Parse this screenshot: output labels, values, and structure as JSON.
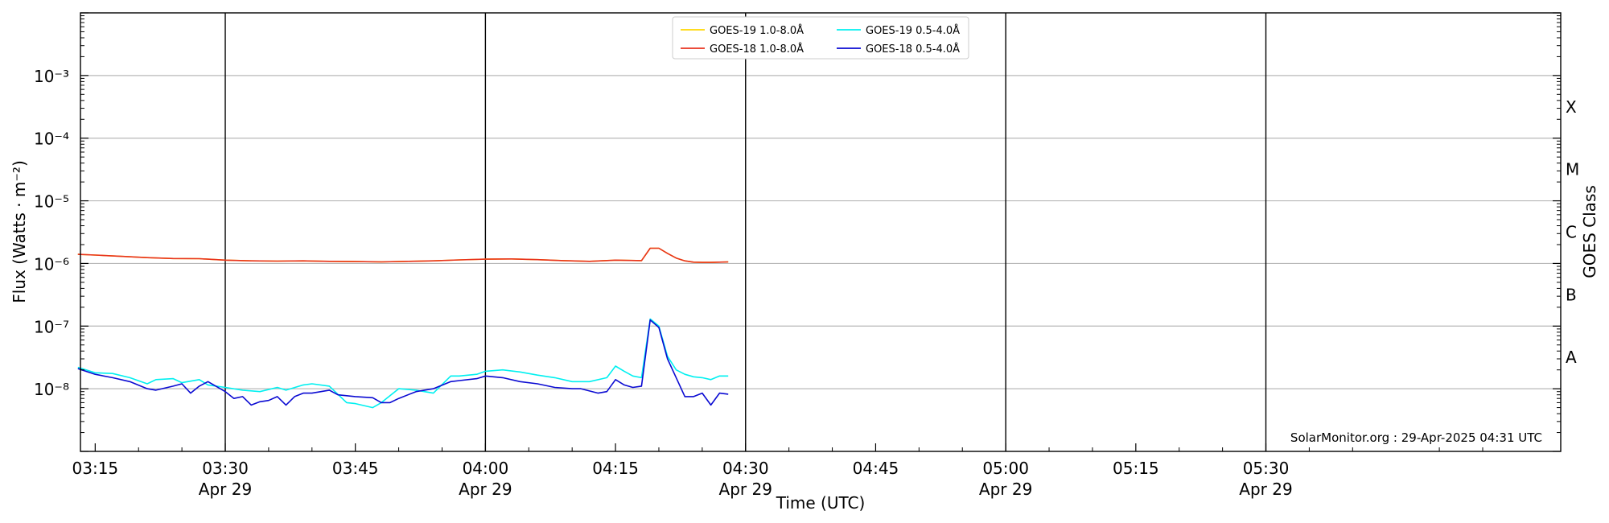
{
  "chart_data": {
    "type": "line",
    "title": "",
    "xlabel": "Time (UTC)",
    "ylabel": "Flux (Watts · m⁻²)",
    "y2label": "GOES Class",
    "yscale": "log",
    "ylim_exp": [
      -9,
      -2
    ],
    "xlim_minutes_of_day": [
      193.3,
      364.0
    ],
    "yticks": [
      {
        "exp": -3,
        "label": "10⁻³"
      },
      {
        "exp": -4,
        "label": "10⁻⁴"
      },
      {
        "exp": -5,
        "label": "10⁻⁵"
      },
      {
        "exp": -6,
        "label": "10⁻⁶"
      },
      {
        "exp": -7,
        "label": "10⁻⁷"
      },
      {
        "exp": -8,
        "label": "10⁻⁸"
      }
    ],
    "xticks": [
      {
        "t": "03:15",
        "label": "03:15",
        "date": ""
      },
      {
        "t": "03:30",
        "label": "03:30",
        "date": "Apr 29"
      },
      {
        "t": "03:45",
        "label": "03:45",
        "date": ""
      },
      {
        "t": "04:00",
        "label": "04:00",
        "date": "Apr 29"
      },
      {
        "t": "04:15",
        "label": "04:15",
        "date": ""
      },
      {
        "t": "04:30",
        "label": "04:30",
        "date": "Apr 29"
      },
      {
        "t": "04:45",
        "label": "04:45",
        "date": ""
      },
      {
        "t": "05:00",
        "label": "05:00",
        "date": "Apr 29"
      },
      {
        "t": "05:15",
        "label": "05:15",
        "date": ""
      },
      {
        "t": "05:30",
        "label": "05:30",
        "date": "Apr 29"
      }
    ],
    "vlines": [
      "03:30",
      "04:00",
      "04:30",
      "05:00",
      "05:30"
    ],
    "classes": [
      {
        "label": "X",
        "exp": -3.5
      },
      {
        "label": "M",
        "exp": -4.5
      },
      {
        "label": "C",
        "exp": -5.5
      },
      {
        "label": "B",
        "exp": -6.5
      },
      {
        "label": "A",
        "exp": -7.5
      }
    ],
    "grid": "horizontal",
    "legend_position": "top-center",
    "annotation": "SolarMonitor.org : 29-Apr-2025 04:31 UTC",
    "series": [
      {
        "name": "GOES-19 1.0-8.0Å",
        "color": "#ffd700",
        "x": [
          "03:13",
          "03:15",
          "03:18",
          "03:21",
          "03:24",
          "03:27",
          "03:30",
          "03:33",
          "03:36",
          "03:39",
          "03:42",
          "03:45",
          "03:48",
          "03:51",
          "03:54",
          "03:57",
          "04:00",
          "04:03",
          "04:06",
          "04:09",
          "04:12",
          "04:15",
          "04:18",
          "04:19",
          "04:20",
          "04:21",
          "04:22",
          "04:23",
          "04:24",
          "04:25",
          "04:26",
          "04:28"
        ],
        "y": [
          1.4e-06,
          1.36e-06,
          1.3e-06,
          1.24e-06,
          1.2e-06,
          1.19e-06,
          1.13e-06,
          1.1e-06,
          1.09e-06,
          1.1e-06,
          1.08e-06,
          1.07e-06,
          1.06e-06,
          1.08e-06,
          1.1e-06,
          1.14e-06,
          1.17e-06,
          1.18e-06,
          1.15e-06,
          1.11e-06,
          1.08e-06,
          1.13e-06,
          1.11e-06,
          1.75e-06,
          1.75e-06,
          1.45e-06,
          1.22e-06,
          1.1e-06,
          1.05e-06,
          1.04e-06,
          1.04e-06,
          1.06e-06
        ]
      },
      {
        "name": "GOES-18 1.0-8.0Å",
        "color": "#e8321e",
        "x": [
          "03:13",
          "03:15",
          "03:18",
          "03:21",
          "03:24",
          "03:27",
          "03:30",
          "03:33",
          "03:36",
          "03:39",
          "03:42",
          "03:45",
          "03:48",
          "03:51",
          "03:54",
          "03:57",
          "04:00",
          "04:03",
          "04:06",
          "04:09",
          "04:12",
          "04:15",
          "04:18",
          "04:19",
          "04:20",
          "04:21",
          "04:22",
          "04:23",
          "04:24",
          "04:25",
          "04:26",
          "04:28"
        ],
        "y": [
          1.4e-06,
          1.36e-06,
          1.3e-06,
          1.24e-06,
          1.2e-06,
          1.19e-06,
          1.13e-06,
          1.1e-06,
          1.09e-06,
          1.1e-06,
          1.08e-06,
          1.07e-06,
          1.06e-06,
          1.08e-06,
          1.1e-06,
          1.14e-06,
          1.17e-06,
          1.18e-06,
          1.15e-06,
          1.11e-06,
          1.08e-06,
          1.13e-06,
          1.11e-06,
          1.75e-06,
          1.75e-06,
          1.45e-06,
          1.22e-06,
          1.1e-06,
          1.05e-06,
          1.04e-06,
          1.04e-06,
          1.06e-06
        ]
      },
      {
        "name": "GOES-19 0.5-4.0Å",
        "color": "#00f0f0",
        "x": [
          "03:13",
          "03:15",
          "03:17",
          "03:19",
          "03:21",
          "03:22",
          "03:24",
          "03:25",
          "03:27",
          "03:28",
          "03:30",
          "03:32",
          "03:34",
          "03:36",
          "03:37",
          "03:39",
          "03:40",
          "03:42",
          "03:44",
          "03:45",
          "03:47",
          "03:48",
          "03:50",
          "03:52",
          "03:54",
          "03:56",
          "03:57",
          "03:59",
          "04:00",
          "04:02",
          "04:04",
          "04:06",
          "04:08",
          "04:10",
          "04:12",
          "04:14",
          "04:15",
          "04:16",
          "04:17",
          "04:18",
          "04:19",
          "04:20",
          "04:21",
          "04:22",
          "04:23",
          "04:24",
          "04:25",
          "04:26",
          "04:27",
          "04:28"
        ],
        "y": [
          2.2e-08,
          1.8e-08,
          1.75e-08,
          1.5e-08,
          1.2e-08,
          1.4e-08,
          1.45e-08,
          1.25e-08,
          1.4e-08,
          1.15e-08,
          1.05e-08,
          9.5e-09,
          9e-09,
          1.05e-08,
          9.5e-09,
          1.15e-08,
          1.2e-08,
          1.1e-08,
          6e-09,
          5.8e-09,
          5e-09,
          6e-09,
          1e-08,
          9.5e-09,
          8.5e-09,
          1.6e-08,
          1.6e-08,
          1.7e-08,
          1.9e-08,
          2e-08,
          1.85e-08,
          1.65e-08,
          1.5e-08,
          1.3e-08,
          1.3e-08,
          1.5e-08,
          2.3e-08,
          1.9e-08,
          1.6e-08,
          1.5e-08,
          1.3e-07,
          1e-07,
          3.3e-08,
          2e-08,
          1.7e-08,
          1.55e-08,
          1.5e-08,
          1.4e-08,
          1.6e-08,
          1.6e-08
        ]
      },
      {
        "name": "GOES-18 0.5-4.0Å",
        "color": "#0a0ad2",
        "x": [
          "03:13",
          "03:15",
          "03:17",
          "03:19",
          "03:21",
          "03:22",
          "03:24",
          "03:25",
          "03:26",
          "03:27",
          "03:28",
          "03:30",
          "03:31",
          "03:32",
          "03:33",
          "03:34",
          "03:35",
          "03:36",
          "03:37",
          "03:38",
          "03:39",
          "03:40",
          "03:42",
          "03:43",
          "03:45",
          "03:47",
          "03:48",
          "03:49",
          "03:50",
          "03:52",
          "03:54",
          "03:56",
          "03:57",
          "03:59",
          "04:00",
          "04:02",
          "04:04",
          "04:06",
          "04:08",
          "04:10",
          "04:11",
          "04:13",
          "04:14",
          "04:15",
          "04:16",
          "04:17",
          "04:18",
          "04:19",
          "04:20",
          "04:21",
          "04:22",
          "04:23",
          "04:24",
          "04:25",
          "04:26",
          "04:27",
          "04:28"
        ],
        "y": [
          2.1e-08,
          1.7e-08,
          1.5e-08,
          1.3e-08,
          1e-08,
          9.5e-09,
          1.1e-08,
          1.2e-08,
          8.5e-09,
          1.1e-08,
          1.3e-08,
          9e-09,
          7e-09,
          7.5e-09,
          5.5e-09,
          6.2e-09,
          6.5e-09,
          7.5e-09,
          5.5e-09,
          7.5e-09,
          8.5e-09,
          8.5e-09,
          9.5e-09,
          8e-09,
          7.5e-09,
          7.2e-09,
          6e-09,
          6e-09,
          7e-09,
          9e-09,
          1e-08,
          1.3e-08,
          1.35e-08,
          1.45e-08,
          1.6e-08,
          1.5e-08,
          1.3e-08,
          1.2e-08,
          1.05e-08,
          1e-08,
          1e-08,
          8.5e-09,
          9e-09,
          1.4e-08,
          1.15e-08,
          1.05e-08,
          1.1e-08,
          1.25e-07,
          9.5e-08,
          3e-08,
          1.5e-08,
          7.5e-09,
          7.5e-09,
          8.5e-09,
          5.5e-09,
          8.5e-09,
          8.2e-09
        ]
      }
    ]
  }
}
